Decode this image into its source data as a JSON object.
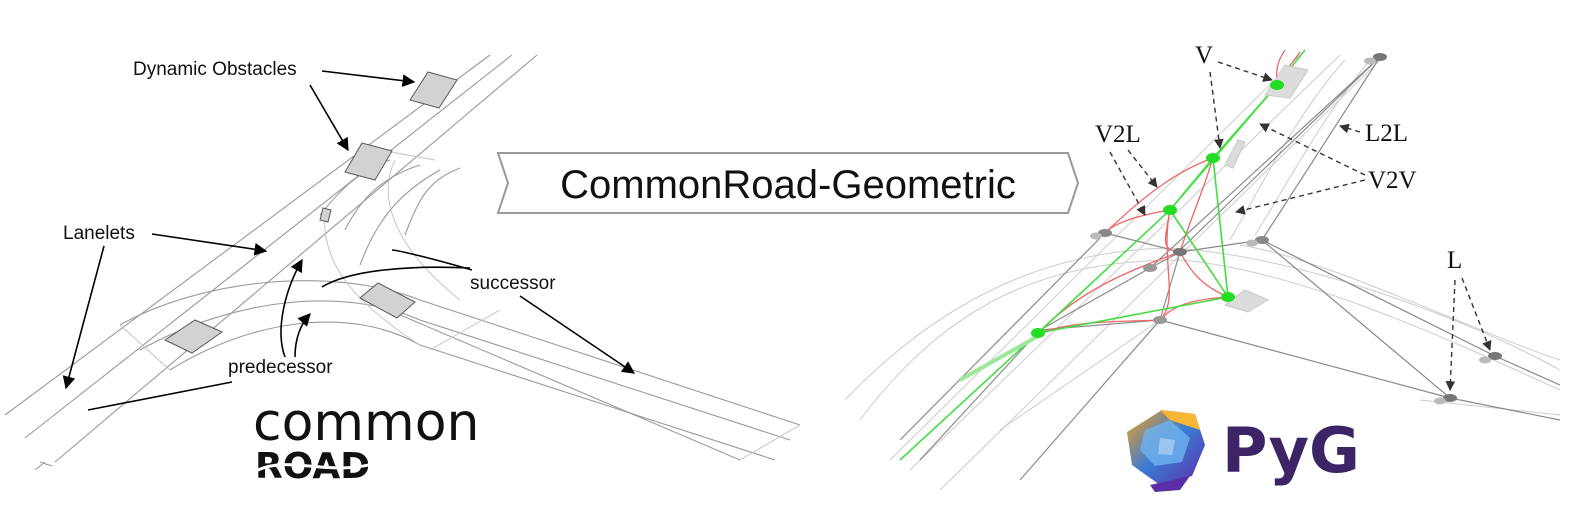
{
  "left_panel": {
    "dynamic_obstacles": "Dynamic Obstacles",
    "lanelets": "Lanelets",
    "successor": "successor",
    "predecessor": "predecessor",
    "logo_top": "common",
    "logo_bottom": "ROAD"
  },
  "center": {
    "title": "CommonRoad-Geometric"
  },
  "right_panel": {
    "v": "V",
    "v2l": "V2L",
    "l2l": "L2L",
    "v2v": "V2V",
    "l": "L",
    "pyg": "PyG"
  },
  "colors": {
    "vehicle_node": "#22dd22",
    "v2l_edge": "#ee6666",
    "v2v_edge": "#44dd44",
    "lanelet_node": "#888888"
  }
}
